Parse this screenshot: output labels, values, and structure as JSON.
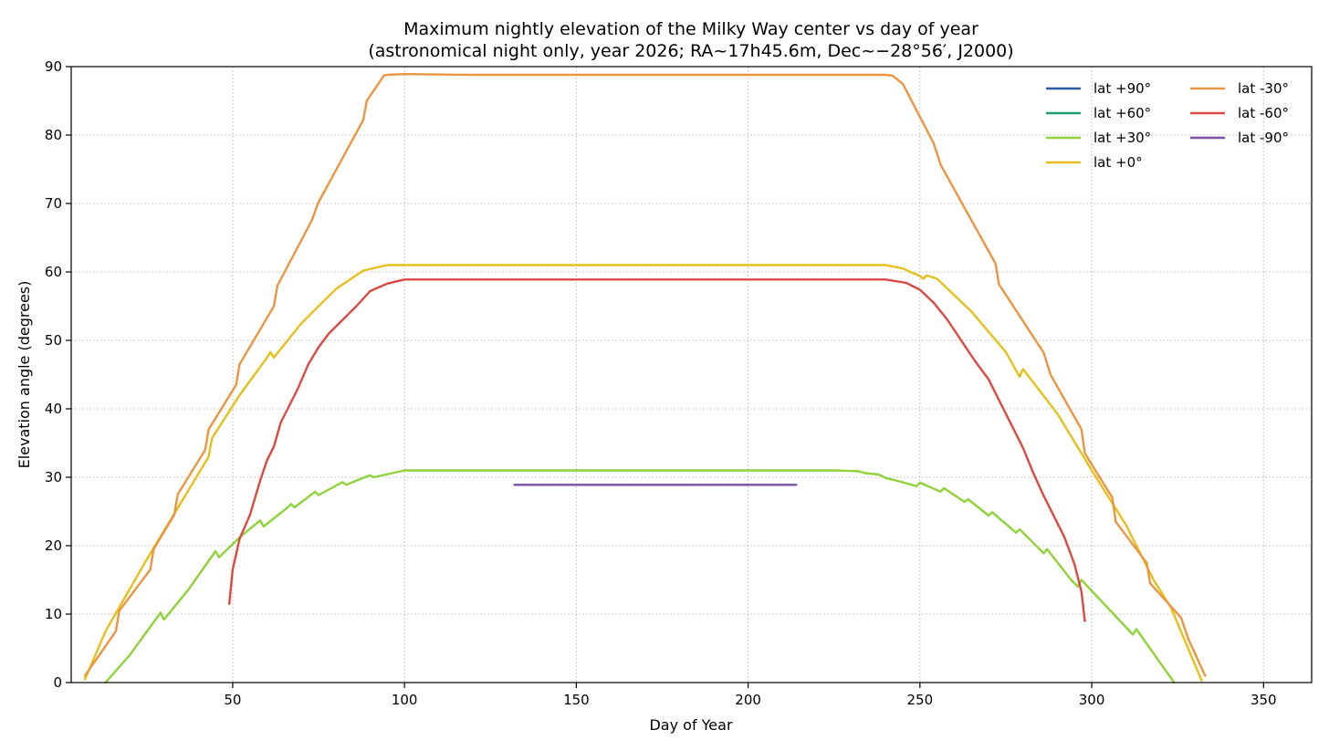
{
  "chart_data": {
    "type": "line",
    "title": "Maximum nightly elevation of the Milky Way center vs day of year",
    "subtitle": "(astronomical night only, year 2026; RA~17h45.6m, Dec~−28°56′, J2000)",
    "xlabel": "Day of Year",
    "ylabel": "Elevation angle (degrees)",
    "xlim": [
      3,
      364
    ],
    "ylim": [
      0,
      90
    ],
    "xticks": [
      50,
      100,
      150,
      200,
      250,
      300,
      350
    ],
    "yticks": [
      0,
      10,
      20,
      30,
      40,
      50,
      60,
      70,
      80,
      90
    ],
    "grid": true,
    "legend": {
      "position": "top-right",
      "columns": 2
    },
    "series": [
      {
        "name": "lat +90°",
        "color": "#2c5aa0",
        "points": []
      },
      {
        "name": "lat +60°",
        "color": "#1b9e77",
        "points": []
      },
      {
        "name": "lat +30°",
        "color": "#8fd23a",
        "points": [
          [
            13,
            0
          ],
          [
            20,
            4
          ],
          [
            29,
            10.2
          ],
          [
            30,
            9.2
          ],
          [
            37,
            13.5
          ],
          [
            45,
            19.2
          ],
          [
            46,
            18.3
          ],
          [
            52,
            21.2
          ],
          [
            58,
            23.7
          ],
          [
            59,
            22.8
          ],
          [
            66,
            25.6
          ],
          [
            67,
            26.1
          ],
          [
            68,
            25.6
          ],
          [
            74,
            27.9
          ],
          [
            75,
            27.4
          ],
          [
            82,
            29.3
          ],
          [
            83,
            28.9
          ],
          [
            90,
            30.3
          ],
          [
            91,
            30
          ],
          [
            100,
            31
          ],
          [
            110,
            31
          ],
          [
            150,
            31
          ],
          [
            200,
            31
          ],
          [
            225,
            31
          ],
          [
            232,
            30.9
          ],
          [
            234,
            30.6
          ],
          [
            238,
            30.4
          ],
          [
            240,
            29.9
          ],
          [
            244,
            29.4
          ],
          [
            249,
            28.7
          ],
          [
            250,
            29.2
          ],
          [
            256,
            27.9
          ],
          [
            257,
            28.4
          ],
          [
            263,
            26.4
          ],
          [
            264,
            26.8
          ],
          [
            270,
            24.4
          ],
          [
            271,
            24.9
          ],
          [
            278,
            21.9
          ],
          [
            279,
            22.4
          ],
          [
            286,
            18.9
          ],
          [
            287,
            19.5
          ],
          [
            294,
            15
          ],
          [
            296,
            14
          ],
          [
            297,
            15
          ],
          [
            312,
            7
          ],
          [
            313,
            7.8
          ],
          [
            324,
            0
          ]
        ]
      },
      {
        "name": "lat +0°",
        "color": "#e6c01a",
        "points": [
          [
            7,
            0.5
          ],
          [
            13,
            7.5
          ],
          [
            17,
            11
          ],
          [
            25,
            18
          ],
          [
            43,
            33
          ],
          [
            44,
            35.7
          ],
          [
            52,
            42
          ],
          [
            60,
            47.5
          ],
          [
            61,
            48.3
          ],
          [
            62,
            47.5
          ],
          [
            70,
            52.5
          ],
          [
            80,
            57.5
          ],
          [
            88,
            60.2
          ],
          [
            95,
            61
          ],
          [
            150,
            61
          ],
          [
            200,
            61
          ],
          [
            240,
            61
          ],
          [
            245,
            60.5
          ],
          [
            250,
            59.4
          ],
          [
            251,
            59
          ],
          [
            252,
            59.5
          ],
          [
            255,
            59
          ],
          [
            265,
            54.2
          ],
          [
            275,
            48.3
          ],
          [
            279,
            44.7
          ],
          [
            280,
            45.8
          ],
          [
            290,
            39.3
          ],
          [
            300,
            31
          ],
          [
            310,
            23
          ],
          [
            318,
            15
          ],
          [
            323,
            11
          ],
          [
            332,
            0.3
          ]
        ]
      },
      {
        "name": "lat -30°",
        "color": "#ea9542",
        "points": [
          [
            7,
            1
          ],
          [
            16,
            7.5
          ],
          [
            17,
            10.5
          ],
          [
            26,
            16.5
          ],
          [
            27,
            19.5
          ],
          [
            33,
            24.5
          ],
          [
            34,
            27.5
          ],
          [
            42,
            34
          ],
          [
            43,
            37
          ],
          [
            51,
            43.5
          ],
          [
            52,
            46.5
          ],
          [
            62,
            55
          ],
          [
            63,
            58
          ],
          [
            73,
            67.5
          ],
          [
            75,
            70.2
          ],
          [
            88,
            82.2
          ],
          [
            89,
            85
          ],
          [
            94,
            88.7
          ],
          [
            95,
            88.8
          ],
          [
            100,
            88.9
          ],
          [
            120,
            88.8
          ],
          [
            140,
            88.8
          ],
          [
            160,
            88.8
          ],
          [
            180,
            88.8
          ],
          [
            200,
            88.8
          ],
          [
            220,
            88.8
          ],
          [
            240,
            88.8
          ],
          [
            242,
            88.7
          ],
          [
            245,
            87.5
          ],
          [
            254,
            78.8
          ],
          [
            256,
            75.7
          ],
          [
            272,
            61.2
          ],
          [
            273,
            58.2
          ],
          [
            286,
            48.2
          ],
          [
            288,
            45
          ],
          [
            297,
            37
          ],
          [
            298,
            33.5
          ],
          [
            306,
            27
          ],
          [
            307,
            23.5
          ],
          [
            316,
            17.5
          ],
          [
            317,
            14.5
          ],
          [
            326,
            9.5
          ],
          [
            328,
            6.5
          ],
          [
            333,
            1
          ]
        ]
      },
      {
        "name": "lat -60°",
        "color": "#d94a42",
        "points": [
          [
            49,
            11.5
          ],
          [
            50,
            16.5
          ],
          [
            52,
            21
          ],
          [
            55,
            24.5
          ],
          [
            58,
            29.5
          ],
          [
            60,
            32.5
          ],
          [
            62,
            34.5
          ],
          [
            64,
            38
          ],
          [
            66,
            40
          ],
          [
            69,
            43
          ],
          [
            72,
            46.5
          ],
          [
            75,
            49
          ],
          [
            78,
            51
          ],
          [
            82,
            53
          ],
          [
            86,
            55
          ],
          [
            90,
            57.2
          ],
          [
            95,
            58.3
          ],
          [
            100,
            58.9
          ],
          [
            150,
            58.9
          ],
          [
            200,
            58.9
          ],
          [
            240,
            58.9
          ],
          [
            246,
            58.4
          ],
          [
            250,
            57.4
          ],
          [
            254,
            55.5
          ],
          [
            258,
            53
          ],
          [
            262,
            50
          ],
          [
            266,
            47
          ],
          [
            270,
            44.3
          ],
          [
            273,
            41.3
          ],
          [
            276,
            38.3
          ],
          [
            280,
            34.3
          ],
          [
            283,
            30.6
          ],
          [
            286,
            27.3
          ],
          [
            289,
            24.3
          ],
          [
            292,
            21.3
          ],
          [
            295,
            17.3
          ],
          [
            297,
            13.3
          ],
          [
            298,
            9
          ]
        ]
      },
      {
        "name": "lat -90°",
        "color": "#7b4fa6",
        "points": [
          [
            132,
            28.9
          ],
          [
            214,
            28.9
          ]
        ]
      }
    ]
  }
}
